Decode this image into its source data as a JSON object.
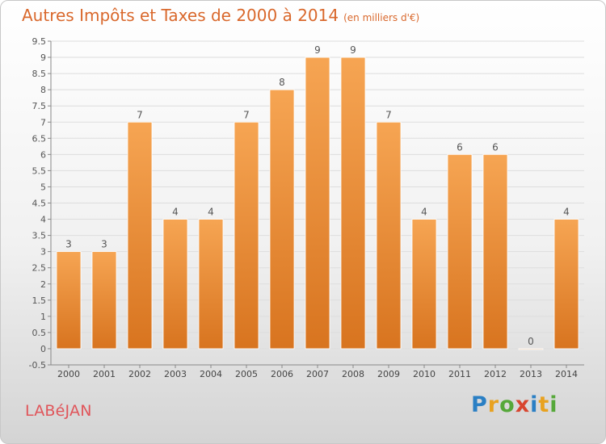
{
  "title": "Autres Impôts et Taxes de 2000 à 2014",
  "title_unit": "(en milliers d'€)",
  "commune": "LABéJAN",
  "logo": {
    "letters": [
      "P",
      "r",
      "o",
      "x",
      "i",
      "t",
      "i"
    ],
    "colors": [
      "#2a7fc4",
      "#e8a220",
      "#56a83a",
      "#d8452e",
      "#2a7fc4",
      "#e8a220",
      "#56a83a"
    ]
  },
  "colors": {
    "title": "#d9682c",
    "bar_top": "#f6a553",
    "bar_bottom": "#d8741f",
    "commune": "#e0555a",
    "axis": "#888888",
    "grid": "#dddddd"
  },
  "chart_data": {
    "type": "bar",
    "categories": [
      "2000",
      "2001",
      "2002",
      "2003",
      "2004",
      "2005",
      "2006",
      "2007",
      "2008",
      "2009",
      "2010",
      "2011",
      "2012",
      "2013",
      "2014"
    ],
    "values": [
      3,
      3,
      7,
      4,
      4,
      7,
      8,
      9,
      9,
      7,
      4,
      6,
      6,
      0,
      4
    ],
    "data_labels": [
      "3",
      "3",
      "7",
      "4",
      "4",
      "7",
      "8",
      "9",
      "9",
      "7",
      "4",
      "6",
      "6",
      "0",
      "4"
    ],
    "y_ticks": [
      "-0.5",
      "0",
      "0.5",
      "1",
      "1.5",
      "2",
      "2.5",
      "3",
      "3.5",
      "4",
      "4.5",
      "5",
      "5.5",
      "6",
      "6.5",
      "7",
      "7.5",
      "8",
      "8.5",
      "9",
      "9.5"
    ],
    "ylim": [
      -0.5,
      9.5
    ],
    "grid": true,
    "title": "Autres Impôts et Taxes de 2000 à 2014",
    "xlabel": "",
    "ylabel": ""
  }
}
